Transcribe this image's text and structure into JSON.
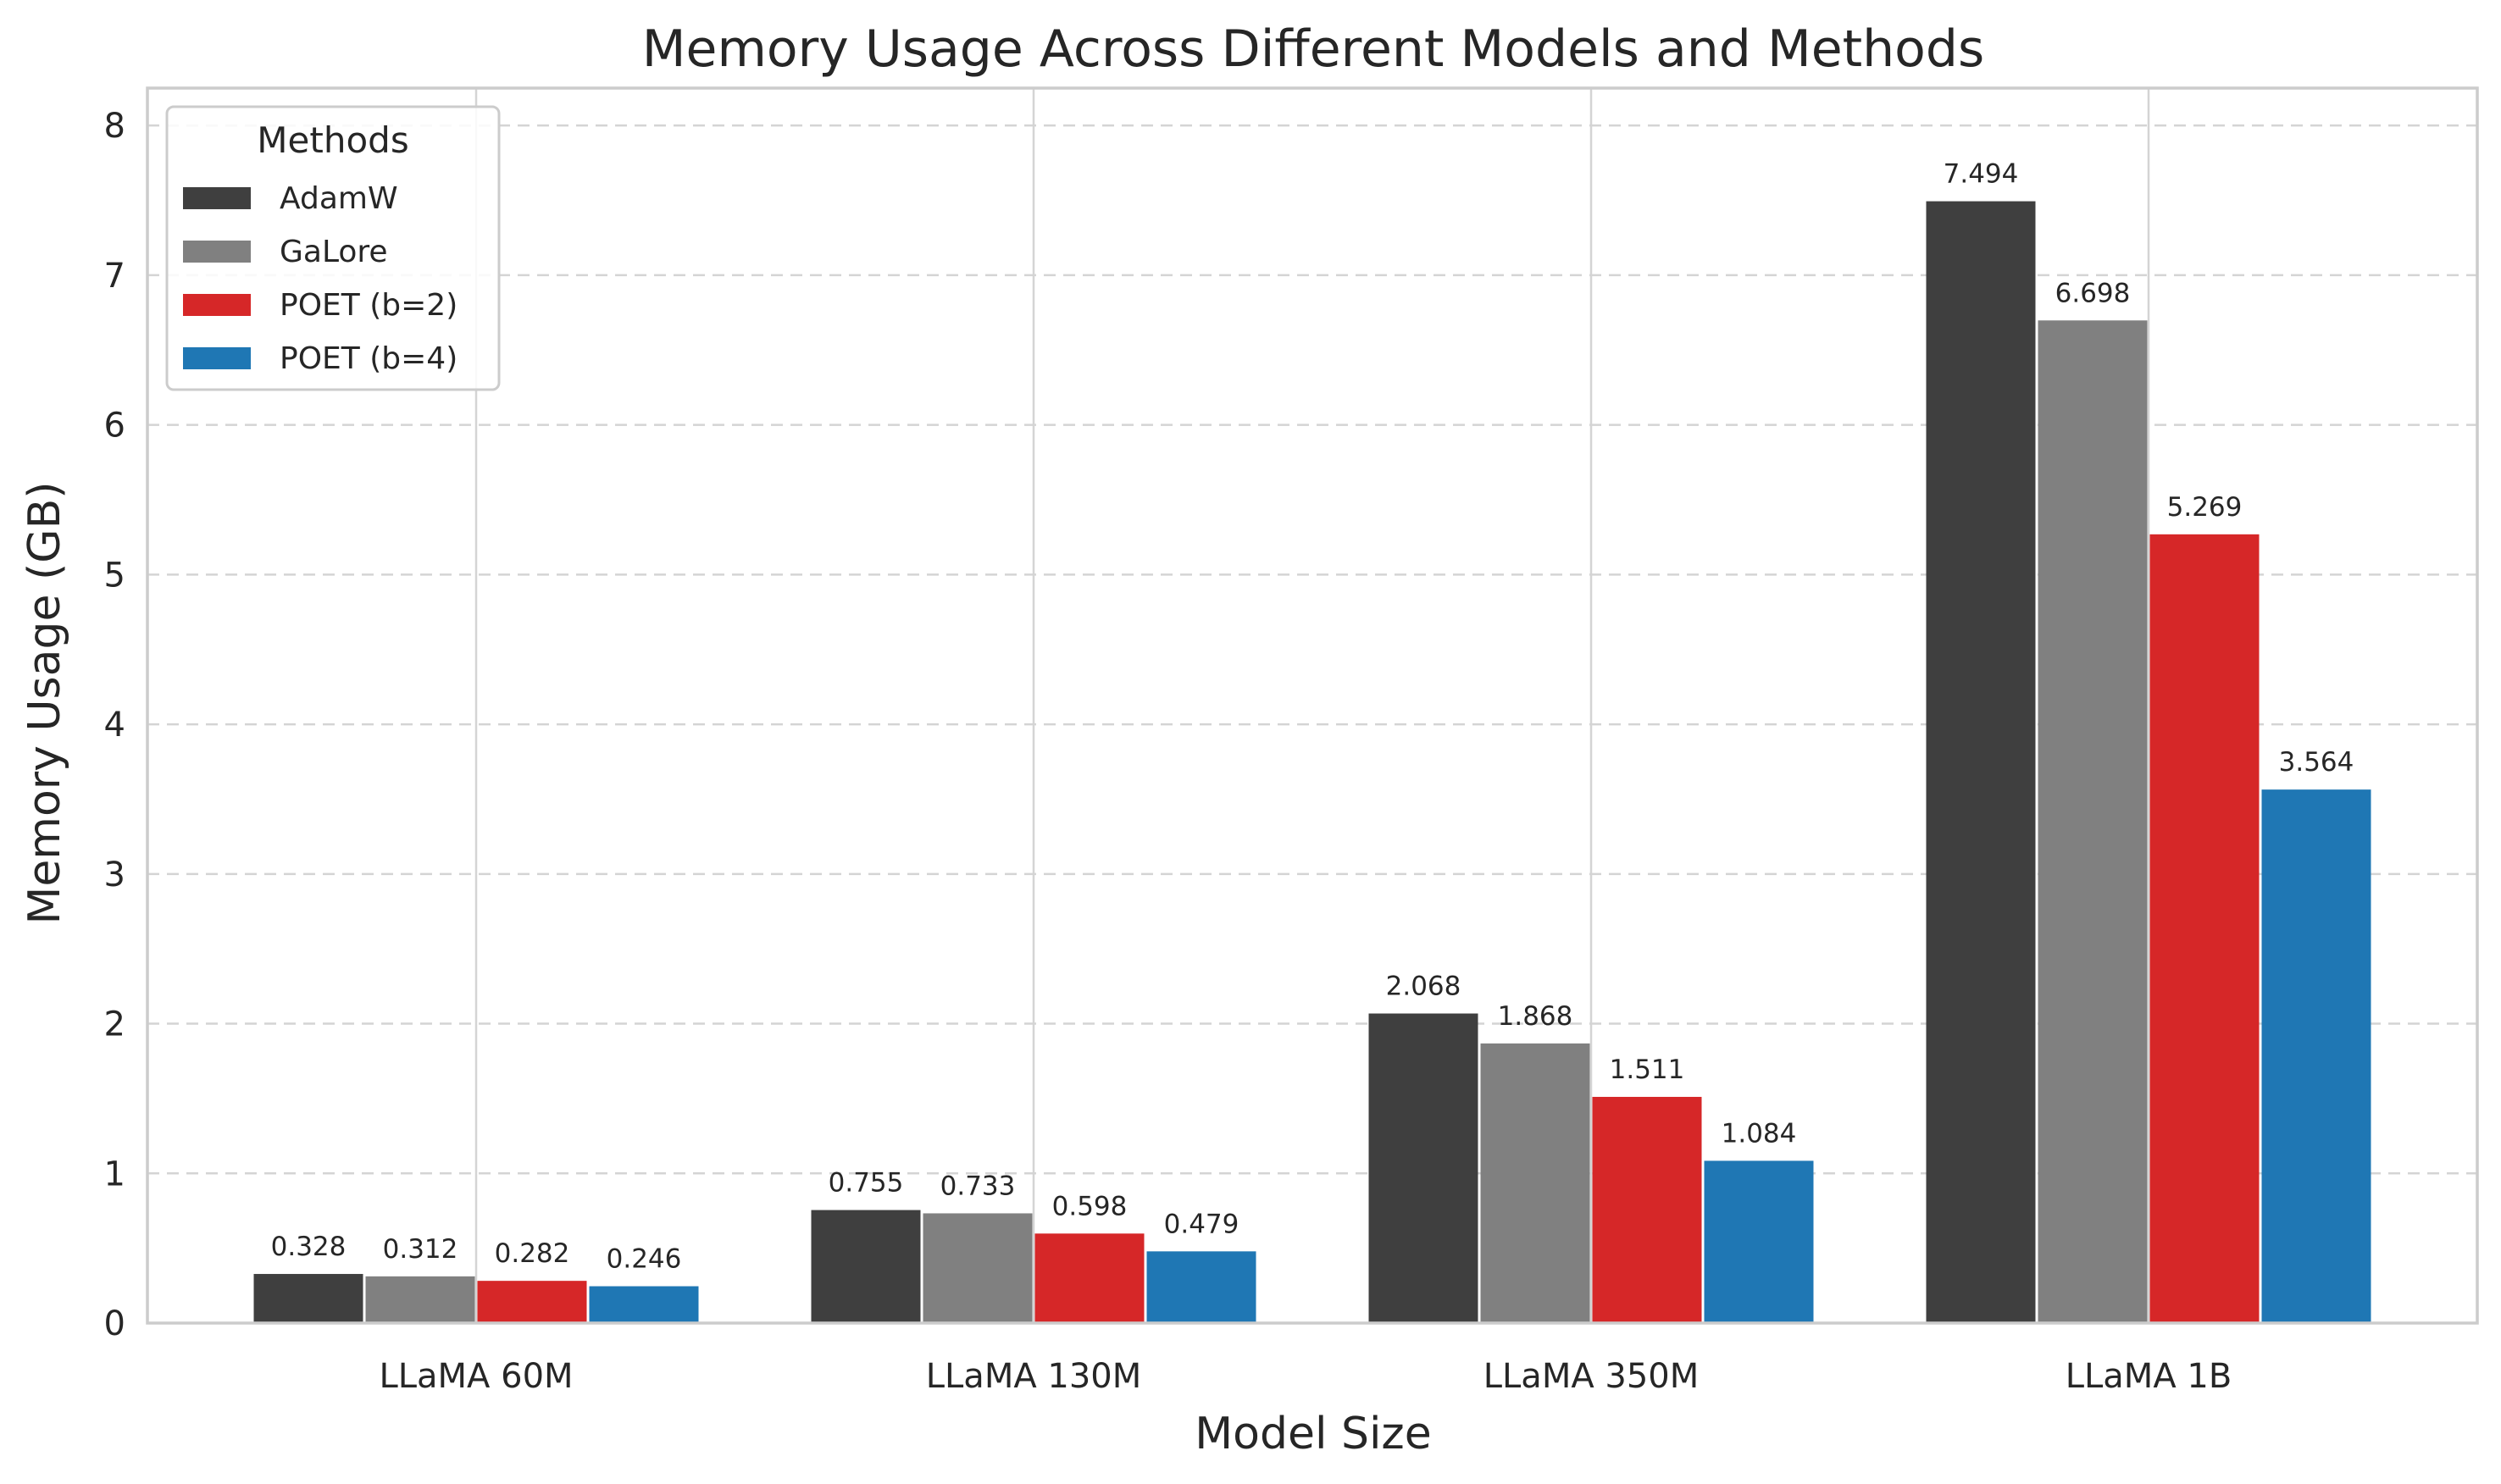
{
  "chart_data": {
    "type": "bar",
    "title": "Memory Usage Across Different Models and Methods",
    "xlabel": "Model Size",
    "ylabel": "Memory Usage (GB)",
    "categories": [
      "LLaMA 60M",
      "LLaMA 130M",
      "LLaMA 350M",
      "LLaMA 1B"
    ],
    "series": [
      {
        "name": "AdamW",
        "color": "#3f3f3f",
        "values": [
          0.328,
          0.755,
          2.068,
          7.494
        ],
        "labels": [
          "0.328",
          "0.755",
          "2.068",
          "7.494"
        ]
      },
      {
        "name": "GaLore",
        "color": "#808080",
        "values": [
          0.312,
          0.733,
          1.868,
          6.698
        ],
        "labels": [
          "0.312",
          "0.733",
          "1.868",
          "6.698"
        ]
      },
      {
        "name": "POET (b=2)",
        "color": "#d62728",
        "values": [
          0.282,
          0.598,
          1.511,
          5.269
        ],
        "labels": [
          "0.282",
          "0.598",
          "1.511",
          "5.269"
        ]
      },
      {
        "name": "POET (b=4)",
        "color": "#1f77b4",
        "values": [
          0.246,
          0.479,
          1.084,
          3.564
        ],
        "labels": [
          "0.246",
          "0.479",
          "1.084",
          "3.564"
        ]
      }
    ],
    "ylim": [
      0,
      8.25
    ],
    "yticks": [
      "0",
      "1",
      "2",
      "3",
      "4",
      "5",
      "6",
      "7",
      "8"
    ],
    "grid": "y-dashed",
    "legend": {
      "title": "Methods",
      "placement": "upper-left"
    }
  }
}
